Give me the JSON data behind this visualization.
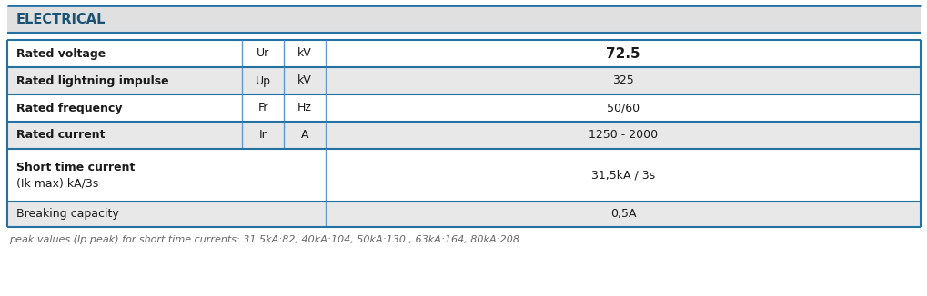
{
  "header_text": "ELECTRICAL",
  "header_bg": "#e0e0e0",
  "header_text_color": "#1a5276",
  "border_color_dark": "#2471a3",
  "border_color_light": "#5b9bd5",
  "rows": [
    {
      "label": "Rated voltage",
      "symbol": "Ur",
      "unit": "kV",
      "value": "72.5",
      "label_bold": true,
      "value_bold": true,
      "bg": "#ffffff"
    },
    {
      "label": "Rated lightning impulse",
      "symbol": "Up",
      "unit": "kV",
      "value": "325",
      "label_bold": true,
      "value_bold": false,
      "bg": "#e8e8e8"
    },
    {
      "label": "Rated frequency",
      "symbol": "Fr",
      "unit": "Hz",
      "value": "50/60",
      "label_bold": true,
      "value_bold": false,
      "bg": "#ffffff"
    },
    {
      "label": "Rated current",
      "symbol": "Ir",
      "unit": "A",
      "value": "1250 - 2000",
      "label_bold": true,
      "value_bold": false,
      "bg": "#e8e8e8"
    },
    {
      "label_line1": "Short time current",
      "label_line2": "(Ik max) kA/3s",
      "symbol": "",
      "unit": "",
      "value": "31,5kA / 3s",
      "label_bold": true,
      "value_bold": false,
      "bg": "#ffffff",
      "tall": true
    },
    {
      "label": "Breaking capacity",
      "symbol": "",
      "unit": "",
      "value": "0,5A",
      "label_bold": false,
      "value_bold": false,
      "bg": "#e8e8e8"
    }
  ],
  "footnote": "peak values (Ip peak) for short time currents: 31.5kA:82, 40kA:104, 50kA:130 , 63kA:164, 80kA:208.",
  "figwidth": 10.2,
  "figheight": 3.26,
  "dpi": 100
}
